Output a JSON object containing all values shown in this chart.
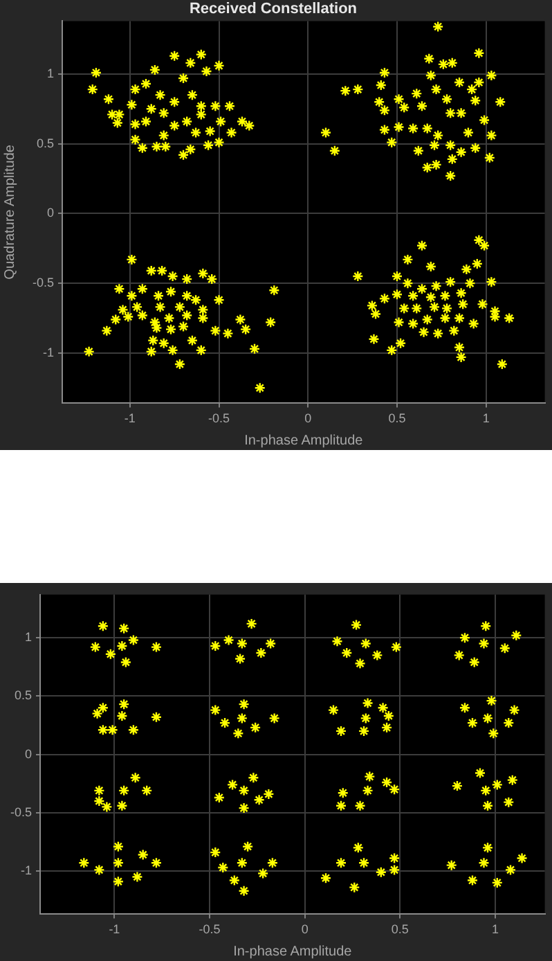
{
  "chart_data": [
    {
      "type": "scatter",
      "title": "Received Constellation",
      "xlabel": "In-phase Amplitude",
      "ylabel": "Quadrature Amplitude",
      "marker": "cross",
      "grid": true,
      "xlim": [
        -1.38,
        1.33
      ],
      "ylim": [
        -1.36,
        1.38
      ],
      "xticks": [
        -1,
        -0.5,
        0,
        0.5,
        1
      ],
      "yticks": [
        -1,
        -0.5,
        0,
        0.5,
        1
      ],
      "series": [
        {
          "color": "#ffff00",
          "x": [
            -1.19,
            -1.21,
            -1.12,
            -1.1,
            -1.07,
            -0.97,
            -0.99,
            -0.97,
            -0.97,
            -0.93,
            -0.91,
            -0.86,
            -0.75,
            -0.66,
            -0.6,
            -0.57,
            -0.5,
            -0.7,
            -0.83,
            -0.88,
            -0.81,
            -0.75,
            -0.65,
            -0.6,
            -0.52,
            -0.44,
            -0.6,
            -0.68,
            -0.75,
            -0.63,
            -0.55,
            -0.49,
            -0.43,
            -0.37,
            -0.33,
            -0.81,
            -0.85,
            -0.8,
            -0.7,
            -0.66,
            -0.56,
            -0.5,
            -0.91,
            -1.06,
            0.1,
            0.15
          ],
          "values": [
            1.01,
            0.89,
            0.82,
            0.71,
            0.65,
            0.89,
            0.78,
            0.64,
            0.53,
            0.47,
            0.93,
            1.03,
            1.13,
            1.08,
            1.14,
            1.02,
            1.06,
            0.97,
            0.85,
            0.75,
            0.72,
            0.8,
            0.85,
            0.77,
            0.77,
            0.77,
            0.71,
            0.66,
            0.63,
            0.58,
            0.59,
            0.66,
            0.58,
            0.66,
            0.63,
            0.56,
            0.48,
            0.48,
            0.42,
            0.46,
            0.49,
            0.51,
            0.66,
            0.71,
            0.58,
            0.45
          ]
        },
        {
          "color": "#ffff00",
          "x": [
            0.73,
            0.96,
            0.68,
            0.76,
            0.81,
            1.03,
            0.43,
            0.21,
            0.28,
            0.41,
            0.69,
            0.72,
            0.85,
            0.92,
            0.96,
            1.08,
            0.61,
            0.51,
            0.4,
            0.43,
            0.54,
            0.64,
            0.78,
            0.94,
            0.8,
            0.86,
            0.99,
            0.43,
            0.51,
            0.59,
            0.67,
            0.73,
            0.9,
            1.03,
            0.47,
            0.62,
            0.71,
            0.8,
            0.86,
            0.94,
            1.02,
            0.67,
            0.72,
            0.8,
            0.81
          ],
          "values": [
            1.34,
            1.15,
            1.11,
            1.07,
            1.08,
            0.99,
            1.01,
            0.88,
            0.89,
            0.92,
            0.99,
            0.89,
            0.94,
            0.89,
            0.94,
            0.8,
            0.86,
            0.82,
            0.8,
            0.74,
            0.76,
            0.77,
            0.82,
            0.81,
            0.72,
            0.72,
            0.67,
            0.6,
            0.62,
            0.61,
            0.61,
            0.56,
            0.58,
            0.56,
            0.51,
            0.45,
            0.49,
            0.49,
            0.44,
            0.47,
            0.4,
            0.33,
            0.35,
            0.27,
            0.39
          ]
        },
        {
          "color": "#ffff00",
          "x": [
            0.64,
            0.96,
            0.99,
            0.56,
            0.69,
            0.95,
            0.89,
            0.28,
            0.5,
            1.03,
            0.56,
            0.64,
            0.72,
            0.8,
            0.91,
            0.5,
            0.59,
            0.69,
            0.77,
            0.86,
            0.43,
            0.36,
            0.54,
            0.61,
            0.71,
            0.78,
            0.87,
            0.98,
            0.38,
            0.51,
            0.59,
            0.67,
            0.77,
            0.85,
            0.93,
            1.05,
            1.05,
            1.13,
            0.65,
            0.73,
            0.82,
            0.37,
            0.52,
            0.47,
            0.85,
            0.86,
            1.09,
            -0.19,
            -0.21
          ],
          "values": [
            -0.23,
            -0.19,
            -0.23,
            -0.33,
            -0.38,
            -0.36,
            -0.4,
            -0.45,
            -0.45,
            -0.49,
            -0.5,
            -0.54,
            -0.52,
            -0.49,
            -0.5,
            -0.58,
            -0.59,
            -0.6,
            -0.59,
            -0.57,
            -0.61,
            -0.66,
            -0.68,
            -0.68,
            -0.67,
            -0.68,
            -0.65,
            -0.65,
            -0.72,
            -0.78,
            -0.79,
            -0.76,
            -0.75,
            -0.75,
            -0.79,
            -0.7,
            -0.74,
            -0.75,
            -0.85,
            -0.86,
            -0.84,
            -0.9,
            -0.93,
            -0.98,
            -0.96,
            -1.03,
            -1.08,
            -0.55,
            -0.78
          ]
        },
        {
          "color": "#ffff00",
          "x": [
            -0.99,
            -0.88,
            -0.82,
            -0.76,
            -0.68,
            -0.59,
            -0.54,
            -1.06,
            -0.99,
            -0.93,
            -0.84,
            -0.77,
            -0.68,
            -0.63,
            -0.5,
            -1.04,
            -0.96,
            -0.83,
            -0.72,
            -0.59,
            -1.08,
            -1.01,
            -0.93,
            -0.86,
            -0.78,
            -0.68,
            -0.59,
            -1.13,
            -0.85,
            -0.77,
            -0.7,
            -0.52,
            -0.45,
            -0.38,
            -0.35,
            -0.87,
            -0.81,
            -0.65,
            -0.88,
            -0.76,
            -0.6,
            -0.72,
            -1.23,
            -0.3,
            -0.27
          ],
          "values": [
            -0.33,
            -0.41,
            -0.41,
            -0.45,
            -0.47,
            -0.43,
            -0.47,
            -0.54,
            -0.59,
            -0.54,
            -0.59,
            -0.56,
            -0.59,
            -0.62,
            -0.62,
            -0.69,
            -0.67,
            -0.67,
            -0.67,
            -0.69,
            -0.76,
            -0.74,
            -0.73,
            -0.78,
            -0.75,
            -0.73,
            -0.75,
            -0.84,
            -0.82,
            -0.83,
            -0.81,
            -0.84,
            -0.86,
            -0.76,
            -0.83,
            -0.91,
            -0.93,
            -0.91,
            -0.99,
            -0.98,
            -0.98,
            -1.08,
            -0.99,
            -0.97,
            -1.25
          ]
        }
      ]
    },
    {
      "type": "scatter",
      "xlabel": "In-phase Amplitude",
      "marker": "cross",
      "grid": true,
      "xlim": [
        -1.39,
        1.26
      ],
      "ylim": [
        -1.37,
        1.37
      ],
      "xticks": [
        -1,
        -0.5,
        0,
        0.5,
        1
      ],
      "yticks": [
        -1,
        -0.5,
        0,
        0.5,
        1
      ],
      "series": [
        {
          "color": "#ffff00",
          "x": [
            -0.96,
            -1.1,
            -0.78,
            -0.95,
            -0.94,
            -1.06,
            -0.9,
            -1.02,
            -0.96,
            -1.09,
            -0.78,
            -0.95,
            -1.01,
            -1.06,
            -0.9,
            -1.06,
            -0.95,
            -1.08,
            -0.83,
            -0.89,
            -0.96,
            -1.04,
            -1.08,
            -0.98,
            -1.16,
            -0.78,
            -0.98,
            -0.98,
            -0.88,
            -0.85,
            -1.08
          ],
          "values": [
            0.93,
            0.92,
            0.92,
            1.08,
            0.79,
            1.1,
            0.98,
            0.86,
            0.33,
            0.35,
            0.32,
            0.43,
            0.21,
            0.21,
            0.21,
            0.4,
            -0.31,
            -0.4,
            -0.31,
            -0.2,
            -0.44,
            -0.45,
            -0.31,
            -0.93,
            -0.93,
            -0.93,
            -0.79,
            -1.09,
            -1.05,
            -0.86,
            -0.99
          ]
        },
        {
          "color": "#ffff00",
          "x": [
            -0.33,
            -0.47,
            -0.18,
            -0.28,
            -0.34,
            -0.4,
            -0.23,
            -0.33,
            -0.47,
            -0.16,
            -0.32,
            -0.35,
            -0.42,
            -0.26,
            -0.32,
            -0.45,
            -0.19,
            -0.27,
            -0.32,
            -0.38,
            -0.24,
            -0.33,
            -0.47,
            -0.17,
            -0.3,
            -0.32,
            -0.37,
            -0.43,
            -0.22
          ],
          "values": [
            0.95,
            0.93,
            0.95,
            1.12,
            0.82,
            0.98,
            0.87,
            0.31,
            0.38,
            0.31,
            0.43,
            0.18,
            0.27,
            0.23,
            -0.31,
            -0.37,
            -0.34,
            -0.2,
            -0.46,
            -0.26,
            -0.39,
            -0.93,
            -0.84,
            -0.93,
            -0.79,
            -1.17,
            -1.08,
            -0.97,
            -1.02
          ]
        },
        {
          "color": "#ffff00",
          "x": [
            0.32,
            0.17,
            0.48,
            0.27,
            0.29,
            0.38,
            0.22,
            0.32,
            0.15,
            0.44,
            0.33,
            0.31,
            0.19,
            0.41,
            0.43,
            0.33,
            0.2,
            0.47,
            0.34,
            0.29,
            0.19,
            0.43,
            0.31,
            0.11,
            0.47,
            0.28,
            0.26,
            0.19,
            0.47,
            0.4
          ],
          "values": [
            0.95,
            0.97,
            0.92,
            1.11,
            0.78,
            0.85,
            0.87,
            0.31,
            0.38,
            0.33,
            0.44,
            0.2,
            0.2,
            0.4,
            0.23,
            -0.31,
            -0.33,
            -0.3,
            -0.19,
            -0.44,
            -0.44,
            -0.24,
            -0.93,
            -1.06,
            -0.99,
            -0.8,
            -1.14,
            -0.93,
            -0.89,
            -1.01
          ]
        },
        {
          "color": "#ffff00",
          "x": [
            0.94,
            0.81,
            1.11,
            0.95,
            0.89,
            1.05,
            0.84,
            0.96,
            0.84,
            1.1,
            0.98,
            0.99,
            0.88,
            1.07,
            0.95,
            0.8,
            1.09,
            0.92,
            0.96,
            1.07,
            1.01,
            0.94,
            0.77,
            1.14,
            0.96,
            1.01,
            0.88,
            1.08
          ],
          "values": [
            0.95,
            0.85,
            1.02,
            1.1,
            0.79,
            0.91,
            1.0,
            0.31,
            0.4,
            0.38,
            0.46,
            0.18,
            0.27,
            0.27,
            -0.31,
            -0.27,
            -0.22,
            -0.16,
            -0.44,
            -0.41,
            -0.26,
            -0.93,
            -0.95,
            -0.89,
            -0.8,
            -1.1,
            -1.08,
            -0.99
          ]
        }
      ]
    }
  ]
}
